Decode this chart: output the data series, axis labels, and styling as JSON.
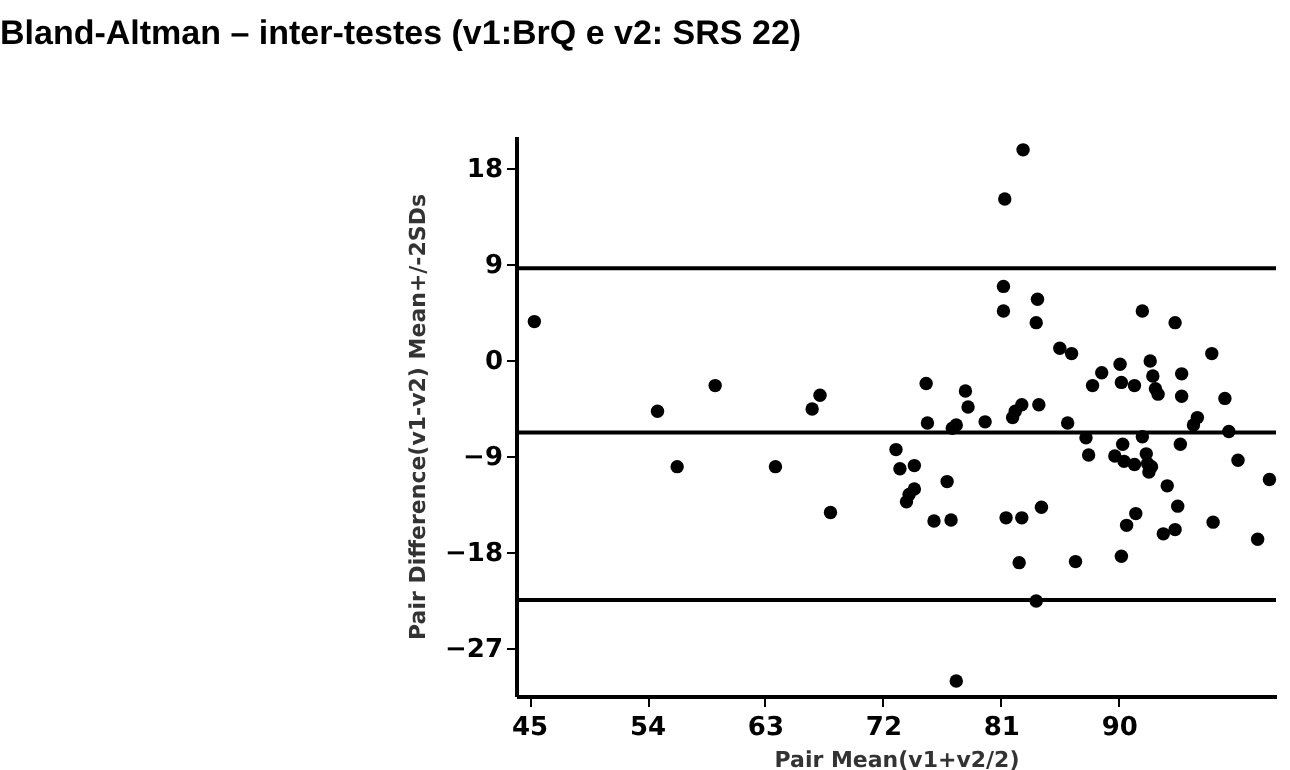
{
  "chart_data": {
    "type": "scatter",
    "title": "Bland-Altman – inter-testes (v1:BrQ e v2: SRS 22)",
    "xlabel": "Pair Mean(v1+v2/2)",
    "ylabel": "Pair Difference(v1-v2) Mean+/-2SDs",
    "x": [
      45.4,
      54.8,
      56.3,
      59.2,
      63.8,
      66.6,
      67.2,
      68.0,
      82.7,
      81.3,
      81.2,
      81.2,
      83.8,
      83.7,
      85.5,
      86.4,
      91.8,
      94.3,
      97.1,
      75.3,
      78.3,
      78.5,
      75.4,
      77.3,
      77.6,
      79.8,
      81.9,
      82.1,
      82.6,
      83.9,
      86.1,
      87.5,
      87.7,
      88.0,
      88.7,
      90.1,
      90.2,
      91.2,
      92.4,
      92.6,
      92.8,
      93.0,
      94.8,
      94.8,
      98.1,
      96.0,
      95.7,
      98.4,
      91.8,
      94.7,
      90.3,
      89.7,
      90.4,
      91.2,
      92.1,
      92.2,
      92.5,
      92.3,
      93.7,
      99.1,
      101.5,
      73.0,
      73.3,
      74.4,
      74.4,
      74.0,
      73.8,
      76.9,
      75.9,
      77.2,
      81.4,
      82.6,
      84.1,
      82.4,
      83.7,
      86.7,
      90.2,
      90.6,
      91.3,
      93.4,
      94.5,
      94.3,
      97.2,
      100.6,
      77.6
    ],
    "series": [
      {
        "color": "#000000",
        "values": [
          3.6,
          -4.8,
          -10.0,
          -2.4,
          -10.0,
          -4.6,
          -3.3,
          -14.3,
          19.7,
          15.1,
          6.9,
          4.6,
          5.7,
          3.5,
          1.1,
          0.6,
          4.6,
          3.5,
          0.6,
          -2.2,
          -2.9,
          -4.4,
          -5.9,
          -6.4,
          -6.1,
          -5.8,
          -5.4,
          -4.8,
          -4.2,
          -4.2,
          -5.9,
          -7.3,
          -8.9,
          -2.4,
          -1.2,
          -0.4,
          -2.1,
          -2.4,
          -0.1,
          -1.5,
          -2.7,
          -3.2,
          -1.3,
          -3.4,
          -3.6,
          -5.4,
          -6.1,
          -6.7,
          -7.2,
          -7.9,
          -7.9,
          -9.0,
          -9.5,
          -9.8,
          -8.8,
          -9.7,
          -10.0,
          -10.5,
          -11.8,
          -9.4,
          -11.2,
          -8.4,
          -10.2,
          -9.9,
          -12.1,
          -12.6,
          -13.3,
          -11.4,
          -15.1,
          -15.0,
          -14.8,
          -14.8,
          -13.8,
          -19.0,
          -22.6,
          -18.9,
          -18.4,
          -15.5,
          -14.4,
          -16.3,
          -13.7,
          -15.9,
          -15.2,
          -16.8,
          -30.1
        ]
      }
    ],
    "xlim": [
      44,
      102
    ],
    "xticks": [
      45,
      54,
      63,
      72,
      81,
      90
    ],
    "ylim": [
      -31.5,
      21
    ],
    "yticks": [
      18,
      9,
      0,
      -9,
      -18,
      -27
    ],
    "ref_lines": [
      {
        "axis": "y",
        "value": 8.6,
        "color": "#000000"
      },
      {
        "axis": "y",
        "value": -6.8,
        "color": "#000000"
      },
      {
        "axis": "y",
        "value": -22.5,
        "color": "#000000"
      }
    ],
    "marker": "circle",
    "grid": false
  }
}
